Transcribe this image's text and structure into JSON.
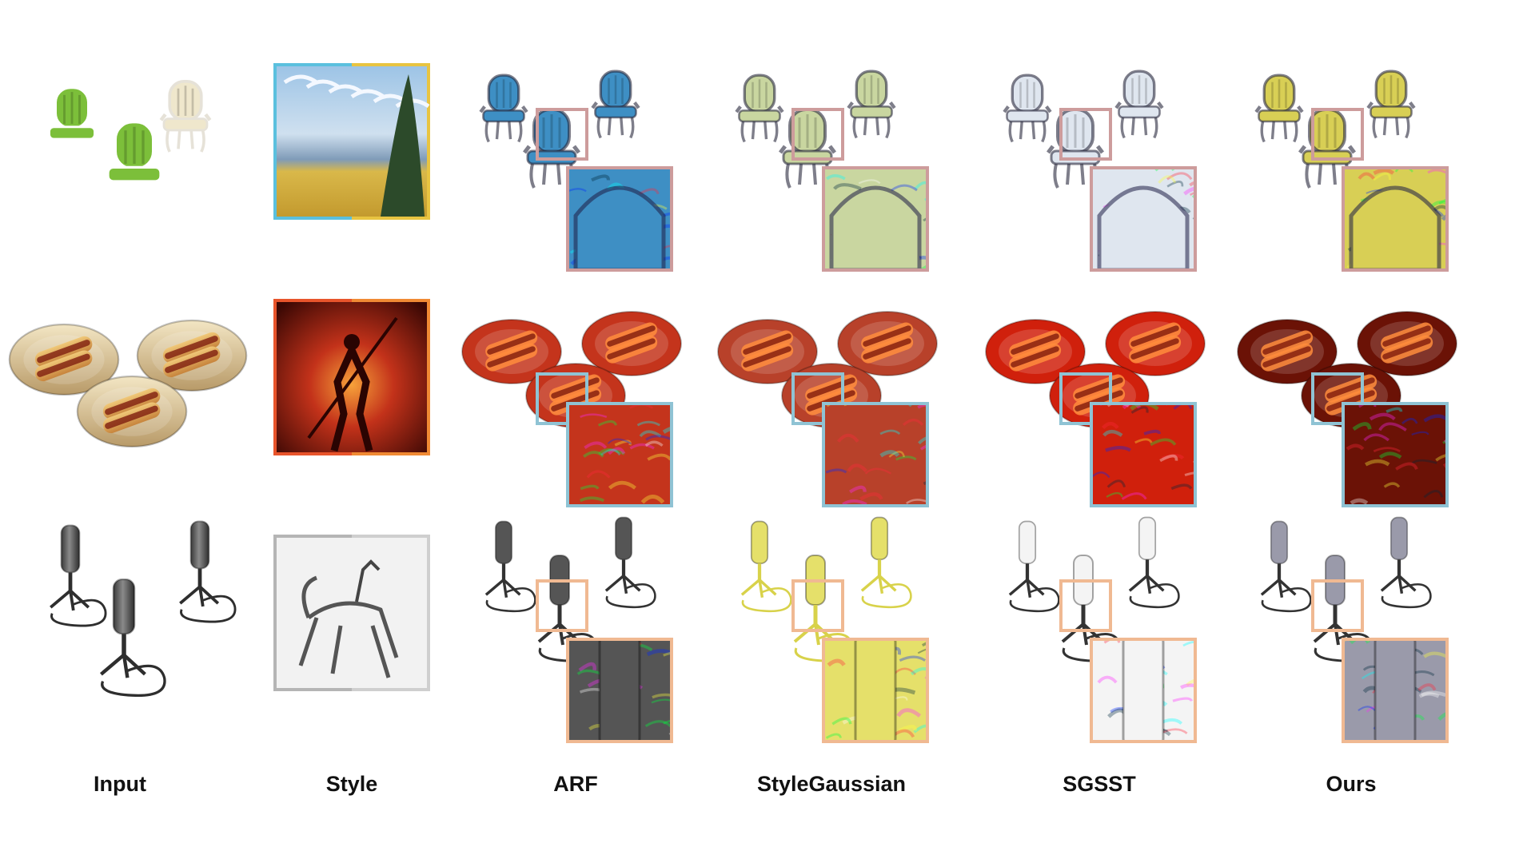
{
  "figure": {
    "columns": [
      {
        "key": "input",
        "label": "Input"
      },
      {
        "key": "style",
        "label": "Style"
      },
      {
        "key": "arf",
        "label": "ARF"
      },
      {
        "key": "stylegaussian",
        "label": "StyleGaussian"
      },
      {
        "key": "sgsst",
        "label": "SGSST"
      },
      {
        "key": "ours",
        "label": "Ours"
      }
    ],
    "rows": [
      {
        "key": "chair",
        "subject": "chair",
        "zoom_box_color": "#cd9c9c",
        "style_frame": [
          "#5bc0de",
          "#e8c441"
        ]
      },
      {
        "key": "hotdog",
        "subject": "hotdog",
        "zoom_box_color": "#8fc3d4",
        "style_frame": [
          "#e8542b",
          "#f08a34"
        ]
      },
      {
        "key": "mic",
        "subject": "microphone",
        "zoom_box_color": "#f0b992",
        "style_frame": [
          "#b5b5b5",
          "#cfcfcf"
        ]
      }
    ]
  },
  "colors": {
    "chair_input": "#7cbf3a",
    "chair_styles": [
      "#3e8fc4",
      "#c9d6a0",
      "#dfe6ef",
      "#d8cf55"
    ],
    "hotdog_styles": [
      "#c4341c",
      "#b8412a",
      "#d0200c",
      "#6b1206"
    ],
    "mic_styles": [
      "#555555",
      "#e5e06a",
      "#f4f4f4",
      "#9a9aaa"
    ]
  }
}
